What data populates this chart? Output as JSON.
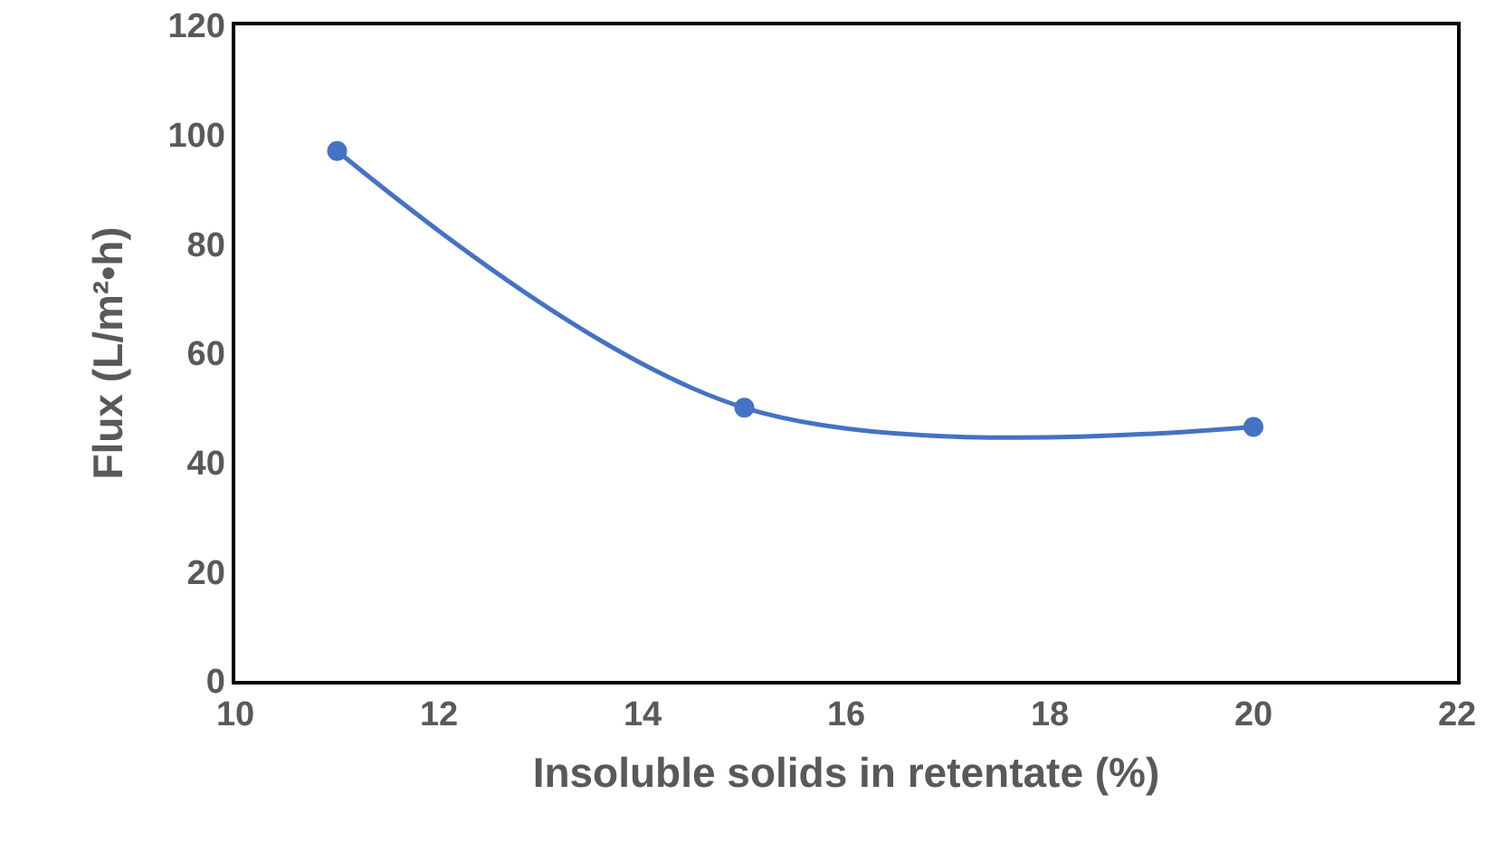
{
  "chart_data": {
    "type": "line",
    "xlabel": "Insoluble solids in retentate (%)",
    "ylabel": "Flux (L/m²•h)",
    "x": [
      11,
      15,
      20
    ],
    "series": [
      {
        "color": "#4472c4",
        "values": [
          97,
          50,
          46.5
        ]
      }
    ],
    "xlim": [
      10,
      22
    ],
    "xticks": [
      10,
      12,
      14,
      16,
      18,
      20,
      22
    ],
    "ylim": [
      0,
      120
    ],
    "yticks": [
      0,
      20,
      40,
      60,
      80,
      100,
      120
    ],
    "grid": false,
    "legend": false,
    "marker": "circle",
    "line_style": "solid"
  }
}
